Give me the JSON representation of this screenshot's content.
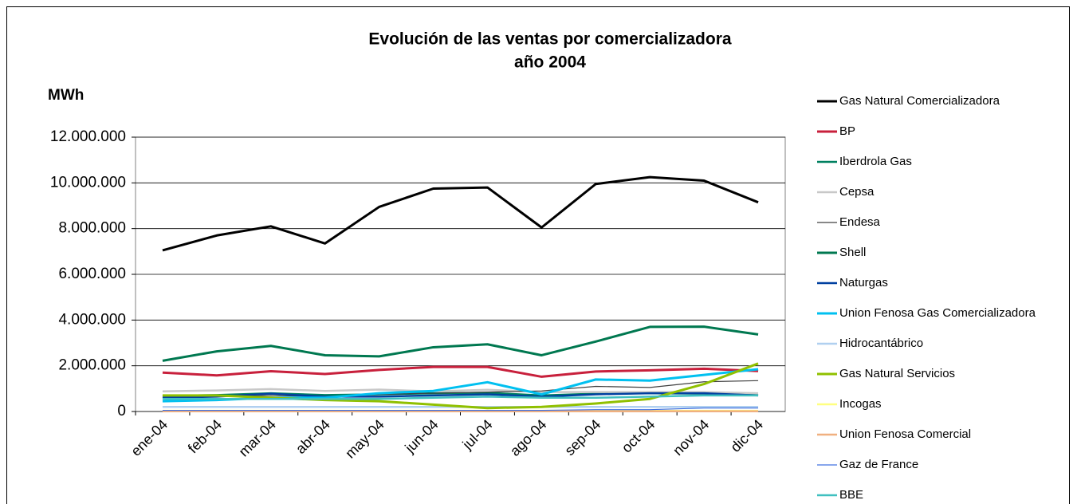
{
  "chart_data": {
    "type": "line",
    "title": [
      "Evolución de las ventas por comercializadora",
      "año 2004"
    ],
    "y_label": "MWh",
    "categories": [
      "ene-04",
      "feb-04",
      "mar-04",
      "abr-04",
      "may-04",
      "jun-04",
      "jul-04",
      "ago-04",
      "sep-04",
      "oct-04",
      "nov-04",
      "dic-04"
    ],
    "ylim": [
      0,
      12000000
    ],
    "yticks": [
      0,
      {
        "value": 2000000,
        "label": "2.000.000"
      },
      {
        "value": 4000000,
        "label": "4.000.000"
      },
      {
        "value": 6000000,
        "label": "6.000.000"
      },
      {
        "value": 8000000,
        "label": "8.000.000"
      },
      {
        "value": 10000000,
        "label": "10.000.000"
      },
      {
        "value": 12000000,
        "label": "12.000.000"
      }
    ],
    "grid": true,
    "legend": "right",
    "series": [
      {
        "name": "Gas Natural Comercializadora",
        "color": "#000000",
        "values": [
          7050000,
          7700000,
          8100000,
          7350000,
          8950000,
          9750000,
          9800000,
          8050000,
          9950000,
          10250000,
          10100000,
          9150000
        ]
      },
      {
        "name": "BP",
        "color": "#c8203c",
        "values": [
          1700000,
          1580000,
          1760000,
          1640000,
          1820000,
          1950000,
          1950000,
          1520000,
          1750000,
          1800000,
          1870000,
          1770000
        ]
      },
      {
        "name": "Iberdrola Gas",
        "color": "#008060",
        "values": [
          680000,
          720000,
          800000,
          720000,
          750000,
          800000,
          820000,
          700000,
          780000,
          800000,
          780000,
          720000
        ]
      },
      {
        "name": "Cepsa",
        "color": "#c8c8c8",
        "values": [
          880000,
          920000,
          980000,
          900000,
          960000,
          880000,
          950000,
          850000,
          850000,
          850000,
          850000,
          800000
        ]
      },
      {
        "name": "Endesa",
        "color": "#404040",
        "values": [
          600000,
          650000,
          700000,
          650000,
          750000,
          800000,
          850000,
          900000,
          1100000,
          1050000,
          1300000,
          1350000
        ]
      },
      {
        "name": "Shell",
        "color": "#007850",
        "values": [
          2220000,
          2630000,
          2870000,
          2460000,
          2410000,
          2810000,
          2940000,
          2460000,
          3060000,
          3700000,
          3710000,
          3370000
        ]
      },
      {
        "name": "Naturgas",
        "color": "#0040a0",
        "values": [
          600000,
          650000,
          780000,
          650000,
          650000,
          700000,
          750000,
          650000,
          750000,
          800000,
          800000,
          700000
        ]
      },
      {
        "name": "Union Fenosa Gas Comercializadora",
        "color": "#00c0f0",
        "values": [
          450000,
          500000,
          600000,
          600000,
          800000,
          900000,
          1280000,
          750000,
          1400000,
          1350000,
          1600000,
          1850000
        ]
      },
      {
        "name": "Hidrocantábrico",
        "color": "#b0d0f0",
        "values": [
          200000,
          200000,
          200000,
          200000,
          200000,
          200000,
          200000,
          200000,
          200000,
          200000,
          200000,
          200000
        ]
      },
      {
        "name": "Gas Natural Servicios",
        "color": "#90c000",
        "values": [
          700000,
          700000,
          600000,
          500000,
          450000,
          300000,
          150000,
          200000,
          350000,
          550000,
          1200000,
          2100000
        ]
      },
      {
        "name": "Incogas",
        "color": "#ffff80",
        "values": [
          30000,
          30000,
          30000,
          30000,
          30000,
          30000,
          30000,
          30000,
          30000,
          30000,
          30000,
          30000
        ]
      },
      {
        "name": "Union Fenosa Comercial",
        "color": "#f0b080",
        "values": [
          10000,
          10000,
          10000,
          10000,
          10000,
          10000,
          10000,
          10000,
          10000,
          10000,
          10000,
          10000
        ]
      },
      {
        "name": "Gaz de France",
        "color": "#4070e0",
        "values": [
          50000,
          50000,
          50000,
          50000,
          50000,
          50000,
          50000,
          50000,
          80000,
          80000,
          150000,
          150000
        ]
      },
      {
        "name": "BBE",
        "color": "#40c0c0",
        "values": [
          550000,
          550000,
          550000,
          550000,
          550000,
          600000,
          650000,
          600000,
          600000,
          650000,
          700000,
          700000
        ]
      }
    ]
  }
}
